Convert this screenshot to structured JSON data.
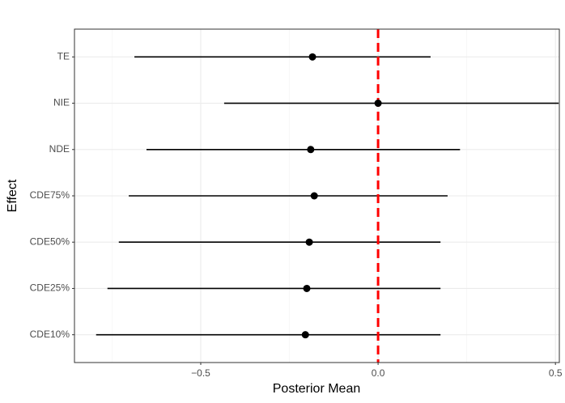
{
  "chart_data": {
    "type": "forest",
    "x_label": "Posterior Mean",
    "y_label": "Effect",
    "categories": [
      "TE",
      "NIE",
      "NDE",
      "CDE75%",
      "CDE50%",
      "CDE25%",
      "CDE10%"
    ],
    "values": [
      -0.185,
      0.0,
      -0.19,
      -0.18,
      -0.194,
      -0.201,
      -0.205
    ],
    "lower": [
      -0.687,
      -0.434,
      -0.653,
      -0.703,
      -0.731,
      -0.763,
      -0.795
    ],
    "upper": [
      0.148,
      0.509,
      0.231,
      0.196,
      0.176,
      0.176,
      0.176
    ],
    "color": "#000000",
    "xlim": [
      -0.856,
      0.511
    ],
    "xticks": [
      {
        "value": -0.5,
        "label": "−0.5"
      },
      {
        "value": 0,
        "label": "0.0"
      },
      {
        "value": 0.5,
        "label": "0.5"
      }
    ],
    "minor_xticks": [
      -0.75,
      -0.25,
      0.25
    ],
    "reference_line": {
      "value": 0,
      "color": "#ff0000"
    },
    "grid": true
  }
}
